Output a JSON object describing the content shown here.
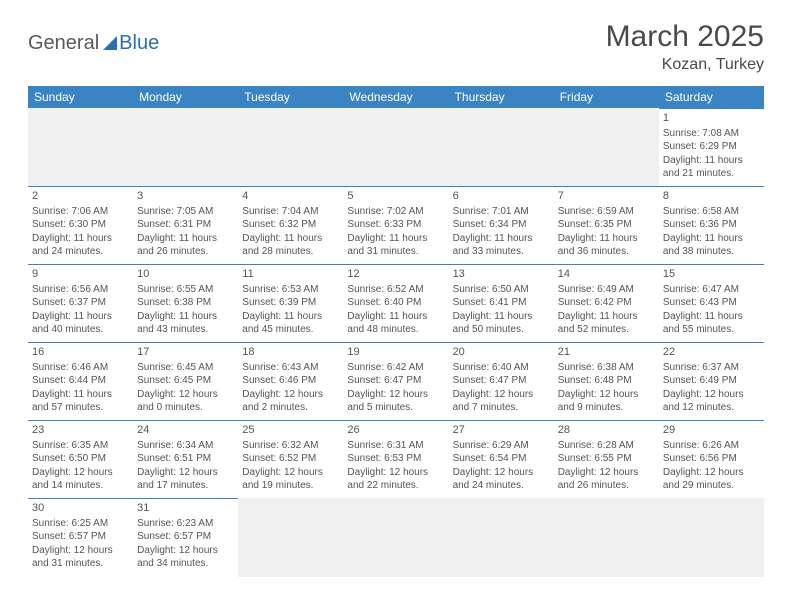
{
  "logo": {
    "text1": "General",
    "text2": "Blue"
  },
  "header": {
    "title": "March 2025",
    "location": "Kozan, Turkey"
  },
  "calendar": {
    "columns": [
      "Sunday",
      "Monday",
      "Tuesday",
      "Wednesday",
      "Thursday",
      "Friday",
      "Saturday"
    ],
    "header_bg": "#3a84c4",
    "header_fg": "#ffffff",
    "empty_bg": "#f0f0f0",
    "border_color": "#3a84c4",
    "days": [
      {
        "n": 1,
        "sunrise": "7:08 AM",
        "sunset": "6:29 PM",
        "daylight": "11 hours and 21 minutes."
      },
      {
        "n": 2,
        "sunrise": "7:06 AM",
        "sunset": "6:30 PM",
        "daylight": "11 hours and 24 minutes."
      },
      {
        "n": 3,
        "sunrise": "7:05 AM",
        "sunset": "6:31 PM",
        "daylight": "11 hours and 26 minutes."
      },
      {
        "n": 4,
        "sunrise": "7:04 AM",
        "sunset": "6:32 PM",
        "daylight": "11 hours and 28 minutes."
      },
      {
        "n": 5,
        "sunrise": "7:02 AM",
        "sunset": "6:33 PM",
        "daylight": "11 hours and 31 minutes."
      },
      {
        "n": 6,
        "sunrise": "7:01 AM",
        "sunset": "6:34 PM",
        "daylight": "11 hours and 33 minutes."
      },
      {
        "n": 7,
        "sunrise": "6:59 AM",
        "sunset": "6:35 PM",
        "daylight": "11 hours and 36 minutes."
      },
      {
        "n": 8,
        "sunrise": "6:58 AM",
        "sunset": "6:36 PM",
        "daylight": "11 hours and 38 minutes."
      },
      {
        "n": 9,
        "sunrise": "6:56 AM",
        "sunset": "6:37 PM",
        "daylight": "11 hours and 40 minutes."
      },
      {
        "n": 10,
        "sunrise": "6:55 AM",
        "sunset": "6:38 PM",
        "daylight": "11 hours and 43 minutes."
      },
      {
        "n": 11,
        "sunrise": "6:53 AM",
        "sunset": "6:39 PM",
        "daylight": "11 hours and 45 minutes."
      },
      {
        "n": 12,
        "sunrise": "6:52 AM",
        "sunset": "6:40 PM",
        "daylight": "11 hours and 48 minutes."
      },
      {
        "n": 13,
        "sunrise": "6:50 AM",
        "sunset": "6:41 PM",
        "daylight": "11 hours and 50 minutes."
      },
      {
        "n": 14,
        "sunrise": "6:49 AM",
        "sunset": "6:42 PM",
        "daylight": "11 hours and 52 minutes."
      },
      {
        "n": 15,
        "sunrise": "6:47 AM",
        "sunset": "6:43 PM",
        "daylight": "11 hours and 55 minutes."
      },
      {
        "n": 16,
        "sunrise": "6:46 AM",
        "sunset": "6:44 PM",
        "daylight": "11 hours and 57 minutes."
      },
      {
        "n": 17,
        "sunrise": "6:45 AM",
        "sunset": "6:45 PM",
        "daylight": "12 hours and 0 minutes."
      },
      {
        "n": 18,
        "sunrise": "6:43 AM",
        "sunset": "6:46 PM",
        "daylight": "12 hours and 2 minutes."
      },
      {
        "n": 19,
        "sunrise": "6:42 AM",
        "sunset": "6:47 PM",
        "daylight": "12 hours and 5 minutes."
      },
      {
        "n": 20,
        "sunrise": "6:40 AM",
        "sunset": "6:47 PM",
        "daylight": "12 hours and 7 minutes."
      },
      {
        "n": 21,
        "sunrise": "6:38 AM",
        "sunset": "6:48 PM",
        "daylight": "12 hours and 9 minutes."
      },
      {
        "n": 22,
        "sunrise": "6:37 AM",
        "sunset": "6:49 PM",
        "daylight": "12 hours and 12 minutes."
      },
      {
        "n": 23,
        "sunrise": "6:35 AM",
        "sunset": "6:50 PM",
        "daylight": "12 hours and 14 minutes."
      },
      {
        "n": 24,
        "sunrise": "6:34 AM",
        "sunset": "6:51 PM",
        "daylight": "12 hours and 17 minutes."
      },
      {
        "n": 25,
        "sunrise": "6:32 AM",
        "sunset": "6:52 PM",
        "daylight": "12 hours and 19 minutes."
      },
      {
        "n": 26,
        "sunrise": "6:31 AM",
        "sunset": "6:53 PM",
        "daylight": "12 hours and 22 minutes."
      },
      {
        "n": 27,
        "sunrise": "6:29 AM",
        "sunset": "6:54 PM",
        "daylight": "12 hours and 24 minutes."
      },
      {
        "n": 28,
        "sunrise": "6:28 AM",
        "sunset": "6:55 PM",
        "daylight": "12 hours and 26 minutes."
      },
      {
        "n": 29,
        "sunrise": "6:26 AM",
        "sunset": "6:56 PM",
        "daylight": "12 hours and 29 minutes."
      },
      {
        "n": 30,
        "sunrise": "6:25 AM",
        "sunset": "6:57 PM",
        "daylight": "12 hours and 31 minutes."
      },
      {
        "n": 31,
        "sunrise": "6:23 AM",
        "sunset": "6:57 PM",
        "daylight": "12 hours and 34 minutes."
      }
    ],
    "labels": {
      "sunrise": "Sunrise:",
      "sunset": "Sunset:",
      "daylight": "Daylight:"
    },
    "first_day_column": 6,
    "total_cells": 42
  }
}
